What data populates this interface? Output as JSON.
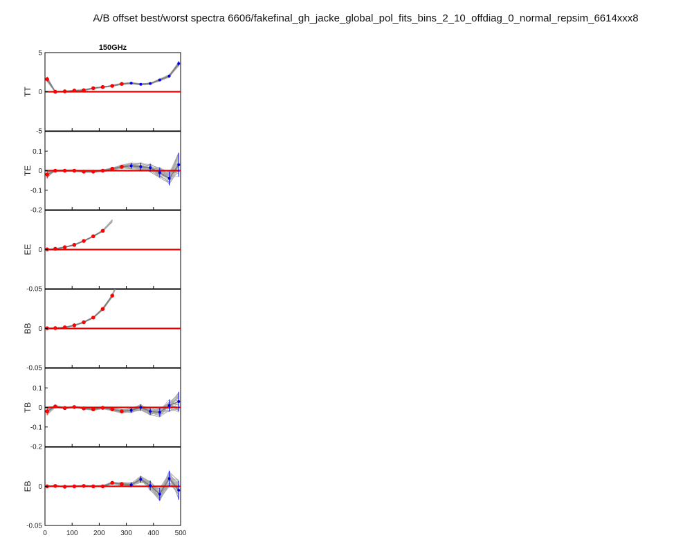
{
  "figure_title": "A/B offset best/worst spectra 6606/fakefinal_gh_jacke_global_pol_fits_bins_2_10_offdiag_0_normal_repsim_6614xxx8",
  "panel_title": "150GHz",
  "colors": {
    "sims": "#a8a8a8",
    "sim_mean": "#7a7a7a",
    "zero_line": "#e00000",
    "kept_points": "#ff0000",
    "other_points": "#0000ee",
    "axes": "#000000"
  },
  "chart_data": {
    "type": "line",
    "x_ticks": [
      "0",
      "100",
      "200",
      "300",
      "400",
      "500"
    ],
    "xlim": [
      0,
      500
    ],
    "x": [
      8,
      38,
      73,
      108,
      143,
      178,
      213,
      248,
      283,
      318,
      353,
      388,
      423,
      458,
      493
    ],
    "panels": [
      {
        "ylabel": "TT",
        "ylim": [
          -5,
          5
        ],
        "yticks": [
          "5",
          "0",
          "-5"
        ],
        "values": [
          1.6,
          0.0,
          0.05,
          0.15,
          0.2,
          0.45,
          0.6,
          0.75,
          1.0,
          1.1,
          0.95,
          1.05,
          1.5,
          2.0,
          3.6
        ],
        "errors": [
          0.3,
          0.08,
          0.08,
          0.08,
          0.08,
          0.08,
          0.08,
          0.1,
          0.1,
          0.1,
          0.1,
          0.12,
          0.15,
          0.2,
          0.3
        ],
        "red_count": 9
      },
      {
        "ylabel": "TE",
        "ylim": [
          -0.2,
          0.2
        ],
        "yticks": [
          "0.1",
          "0",
          "-0.1",
          "-0.2"
        ],
        "values": [
          -0.02,
          0.0,
          0.0,
          0.0,
          -0.005,
          -0.005,
          0.0,
          0.01,
          0.02,
          0.025,
          0.02,
          0.015,
          -0.01,
          -0.04,
          0.03
        ],
        "errors": [
          0.02,
          0.005,
          0.005,
          0.005,
          0.005,
          0.005,
          0.006,
          0.008,
          0.01,
          0.015,
          0.02,
          0.02,
          0.025,
          0.035,
          0.06
        ],
        "red_count": 9
      },
      {
        "ylabel": "EE",
        "ylim": [
          -0.05,
          0.05
        ],
        "yticks": [
          "0",
          "-0.05"
        ],
        "values": [
          0.0003,
          0.001,
          0.003,
          0.006,
          0.011,
          0.017,
          0.024
        ],
        "errors": [
          0.0005,
          0.0005,
          0.0006,
          0.0007,
          0.0008,
          0.001,
          0.0012
        ],
        "red_count": 7
      },
      {
        "ylabel": "BB",
        "ylim": [
          -0.05,
          0.05
        ],
        "yticks": [
          "0",
          "-0.05"
        ],
        "values": [
          0.0003,
          0.0005,
          0.0015,
          0.004,
          0.008,
          0.014,
          0.025,
          0.042
        ],
        "errors": [
          0.0005,
          0.0005,
          0.0006,
          0.0007,
          0.0008,
          0.001,
          0.0015,
          0.002
        ],
        "red_count": 8
      },
      {
        "ylabel": "TB",
        "ylim": [
          -0.2,
          0.2
        ],
        "yticks": [
          "0.1",
          "0",
          "-0.1",
          "-0.2"
        ],
        "values": [
          -0.02,
          0.005,
          -0.003,
          0.002,
          -0.005,
          -0.01,
          -0.002,
          -0.01,
          -0.02,
          -0.015,
          0.0,
          -0.02,
          -0.025,
          0.01,
          0.03
        ],
        "errors": [
          0.02,
          0.005,
          0.005,
          0.005,
          0.005,
          0.006,
          0.006,
          0.008,
          0.01,
          0.012,
          0.015,
          0.018,
          0.022,
          0.03,
          0.05
        ],
        "red_count": 9
      },
      {
        "ylabel": "EB",
        "ylim": [
          -0.05,
          0.05
        ],
        "yticks": [
          "0",
          "-0.05"
        ],
        "values": [
          0.0,
          0.0005,
          -0.0005,
          0.0,
          0.0005,
          0.0,
          0.0,
          0.0045,
          0.003,
          0.002,
          0.009,
          0.001,
          -0.01,
          0.01,
          -0.005
        ],
        "errors": [
          0.001,
          0.0007,
          0.0007,
          0.0008,
          0.001,
          0.001,
          0.0012,
          0.0015,
          0.002,
          0.003,
          0.004,
          0.006,
          0.008,
          0.01,
          0.012
        ],
        "red_count": 9
      }
    ]
  }
}
